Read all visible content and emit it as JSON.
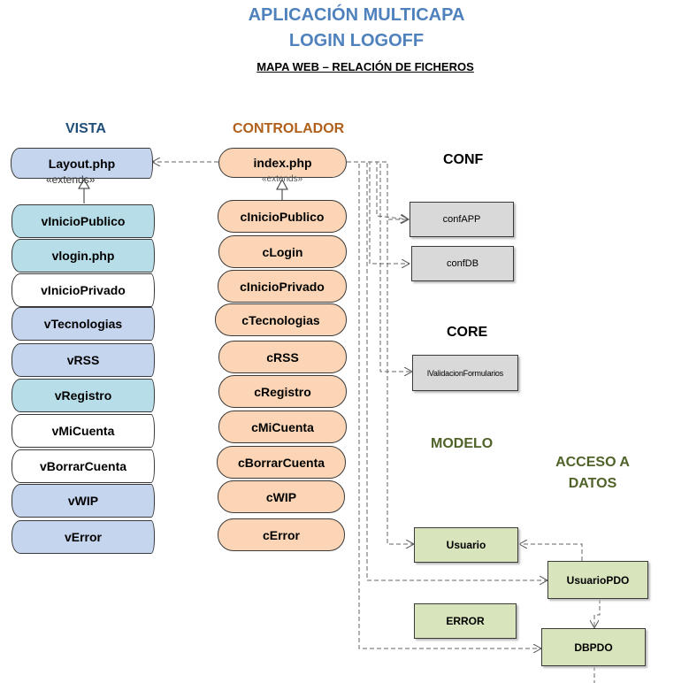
{
  "title_line1": "APLICACIÓN MULTICAPA",
  "title_line2": "LOGIN LOGOFF",
  "subtitle": "MAPA WEB – RELACIÓN DE FICHEROS",
  "colors": {
    "title": "#4f81bd",
    "vista_header": "#1f4e79",
    "controlador_header": "#b0601a",
    "modelo_header": "#4f6228",
    "vista_blue": "#c5d5ee",
    "vista_cyan": "#b6dde8",
    "vista_white": "#ffffff",
    "controller": "#fbd5b5",
    "conf_core": "#d9d9d9",
    "modelo_box": "#d7e4bc"
  },
  "vista": {
    "header": "VISTA",
    "layout": "Layout.php",
    "extends": "«extends»",
    "items": [
      {
        "label": "vInicioPublico",
        "color": "#b6dde8"
      },
      {
        "label": "vlogin.php",
        "color": "#b6dde8"
      },
      {
        "label": "vInicioPrivado",
        "color": "#ffffff"
      },
      {
        "label": "vTecnologias",
        "color": "#c5d5ee"
      },
      {
        "label": "vRSS",
        "color": "#c5d5ee"
      },
      {
        "label": "vRegistro",
        "color": "#b6dde8"
      },
      {
        "label": "vMiCuenta",
        "color": "#ffffff"
      },
      {
        "label": "vBorrarCuenta",
        "color": "#ffffff"
      },
      {
        "label": "vWIP",
        "color": "#c5d5ee"
      },
      {
        "label": "vError",
        "color": "#c5d5ee"
      }
    ]
  },
  "controlador": {
    "header": "CONTROLADOR",
    "index": "index.php",
    "items": [
      "cInicioPublico",
      "cLogin",
      "cInicioPrivado",
      "cTecnologias",
      "cRSS",
      "cRegistro",
      "cMiCuenta",
      "cBorrarCuenta",
      "cWIP",
      "cError"
    ]
  },
  "conf": {
    "header": "CONF",
    "items": [
      "confAPP",
      "confDB"
    ]
  },
  "core": {
    "header": "CORE",
    "items": [
      "lValidacionFormularios"
    ]
  },
  "modelo": {
    "header": "MODELO",
    "usuario": "Usuario",
    "error": "ERROR"
  },
  "acceso": {
    "header_line1": "ACCESO A",
    "header_line2": "DATOS",
    "usuariopdo": "UsuarioPDO",
    "dbpdo": "DBPDO"
  }
}
